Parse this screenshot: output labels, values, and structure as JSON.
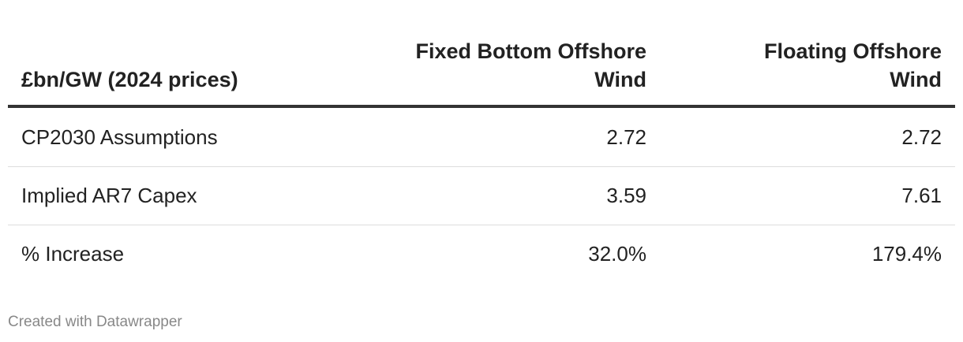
{
  "table": {
    "header": [
      "£bn/GW (2024 prices)",
      "Fixed Bottom Offshore Wind",
      "Floating Offshore Wind"
    ],
    "rows": [
      [
        "CP2030 Assumptions",
        "2.72",
        "2.72"
      ],
      [
        "Implied AR7 Capex",
        "3.59",
        "7.61"
      ],
      [
        "% Increase",
        "32.0%",
        "179.4%"
      ]
    ]
  },
  "footer": "Created with Datawrapper"
}
